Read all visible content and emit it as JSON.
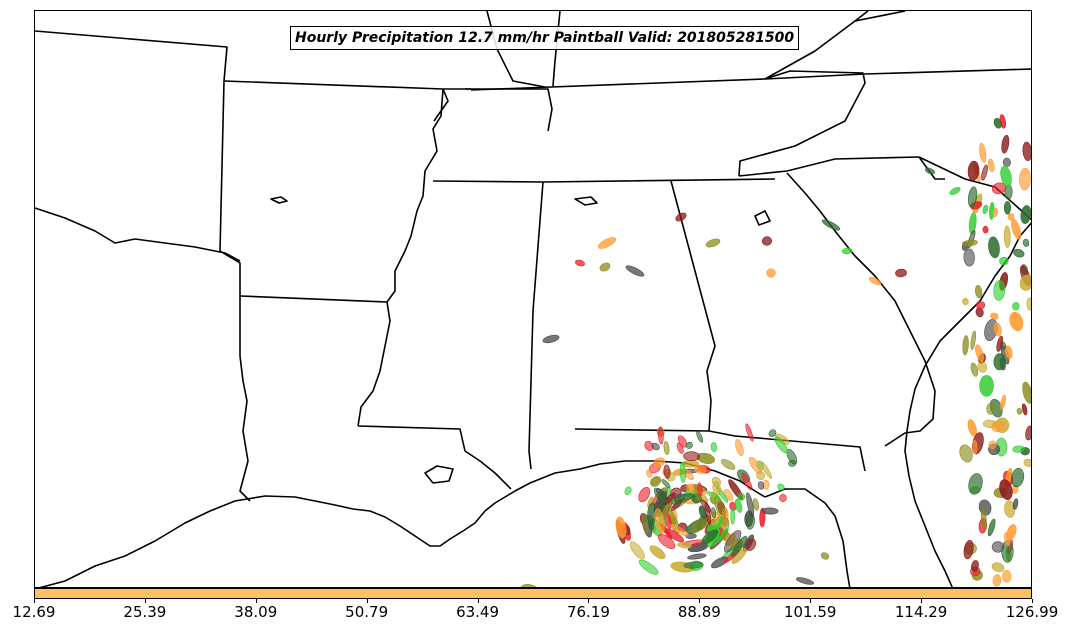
{
  "title": "Hourly Precipitation 12.7 mm/hr Paintball Valid: 201805281500",
  "colorbar": {
    "color": "#ffbf63",
    "ticks": [
      "12.69",
      "25.39",
      "38.09",
      "50.79",
      "63.49",
      "76.19",
      "88.89",
      "101.59",
      "114.29",
      "126.99"
    ]
  },
  "member_colors": [
    "#ff9a2e",
    "#e8222a",
    "#4a4a4a",
    "#8b1a1a",
    "#2ecc2e",
    "#8c8c1e",
    "#2e6b2e",
    "#c8a82e"
  ]
}
